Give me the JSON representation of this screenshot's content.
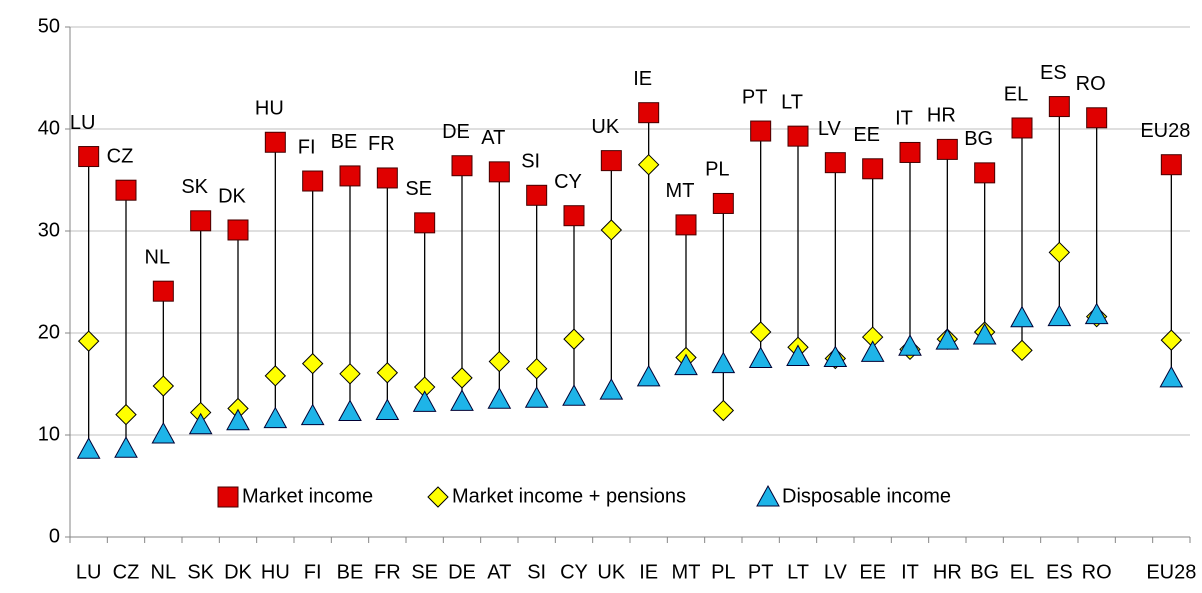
{
  "chart_data": {
    "type": "dot-range",
    "categories": [
      "LU",
      "CZ",
      "NL",
      "SK",
      "DK",
      "HU",
      "FI",
      "BE",
      "FR",
      "SE",
      "DE",
      "AT",
      "SI",
      "CY",
      "UK",
      "IE",
      "MT",
      "PL",
      "PT",
      "LT",
      "LV",
      "EE",
      "IT",
      "HR",
      "BG",
      "EL",
      "ES",
      "RO",
      null,
      "EU28"
    ],
    "series": [
      {
        "name": "Market income",
        "color": "#e00000",
        "marker": "square",
        "values": [
          37.3,
          34,
          24.1,
          31,
          30.1,
          38.7,
          34.9,
          35.4,
          35.2,
          30.8,
          36.4,
          35.8,
          33.5,
          31.5,
          36.9,
          41.6,
          30.6,
          32.7,
          39.8,
          39.3,
          36.7,
          36.1,
          37.7,
          38,
          35.7,
          40.1,
          42.2,
          41.1,
          null,
          36.5
        ]
      },
      {
        "name": "Market income + pensions",
        "color": "#ffff00",
        "marker": "diamond",
        "values": [
          19.2,
          12,
          14.8,
          12.2,
          12.6,
          15.8,
          17,
          16,
          16.1,
          14.7,
          15.6,
          17.2,
          16.5,
          19.4,
          30.1,
          36.5,
          17.6,
          12.4,
          20.1,
          18.6,
          17.5,
          19.6,
          18.4,
          19.4,
          20.1,
          18.3,
          27.9,
          21.6,
          null,
          19.3
        ]
      },
      {
        "name": "Disposable income",
        "color": "#1eb4e8",
        "marker": "triangle",
        "values": [
          8.6,
          8.7,
          10.1,
          11,
          11.4,
          11.6,
          11.9,
          12.3,
          12.4,
          13.2,
          13.3,
          13.5,
          13.6,
          13.8,
          14.4,
          15.7,
          16.8,
          17,
          17.5,
          17.7,
          17.6,
          18.1,
          18.7,
          19.3,
          19.8,
          21.5,
          21.6,
          21.8,
          null,
          15.6
        ]
      }
    ],
    "ylim": [
      0,
      50
    ],
    "yticks": [
      0,
      10,
      20,
      30,
      40,
      50
    ],
    "grid": true,
    "legend": "lower center"
  }
}
